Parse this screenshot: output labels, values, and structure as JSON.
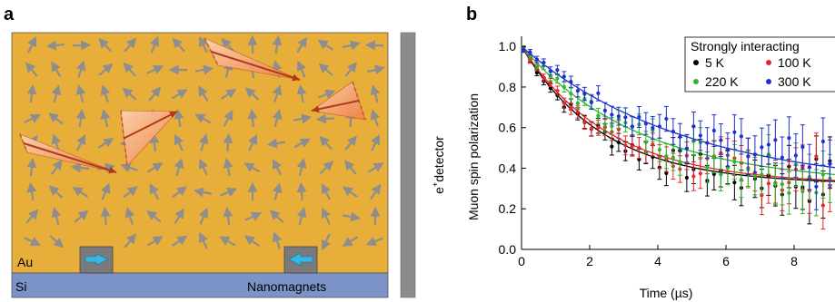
{
  "panel_a": {
    "label": "a",
    "layer_top": "Au",
    "layer_bottom": "Si",
    "nanomagnets_label": "Nanomagnets",
    "detector_label": "detector",
    "detector_label_prefix": "e",
    "detector_label_sup": "+",
    "colors": {
      "gold": "#E8AE3A",
      "silicon": "#7B93C6",
      "arrow": "#8E8E8E",
      "magnet_box": "#7A7A7A",
      "magnet_arrow": "#35B6E8",
      "detector": "#8C8C8C",
      "cone_dark": "#B03A1A",
      "cone_light": "#F7B886"
    }
  },
  "panel_b": {
    "label": "b",
    "legend_title": "Strongly interacting",
    "chart_data": {
      "type": "scatter",
      "xlabel": "Time (µs)",
      "ylabel": "Muon spin polarization",
      "xlim": [
        0,
        9.2
      ],
      "ylim": [
        0,
        1.05
      ],
      "xticks": [
        0,
        2,
        4,
        6,
        8
      ],
      "yticks": [
        0.0,
        0.2,
        0.4,
        0.6,
        0.8,
        1.0
      ],
      "legend_position": "top-right",
      "series": [
        {
          "name": "5 K",
          "color": "#000000",
          "a": 0.68,
          "tau": 2.4
        },
        {
          "name": "100 K",
          "color": "#E8262A",
          "a": 0.68,
          "tau": 2.6
        },
        {
          "name": "220 K",
          "color": "#2DB52D",
          "a": 0.68,
          "tau": 3.5
        },
        {
          "name": "300 K",
          "color": "#1E2FD0",
          "a": 0.7,
          "tau": 4.8
        }
      ]
    }
  }
}
